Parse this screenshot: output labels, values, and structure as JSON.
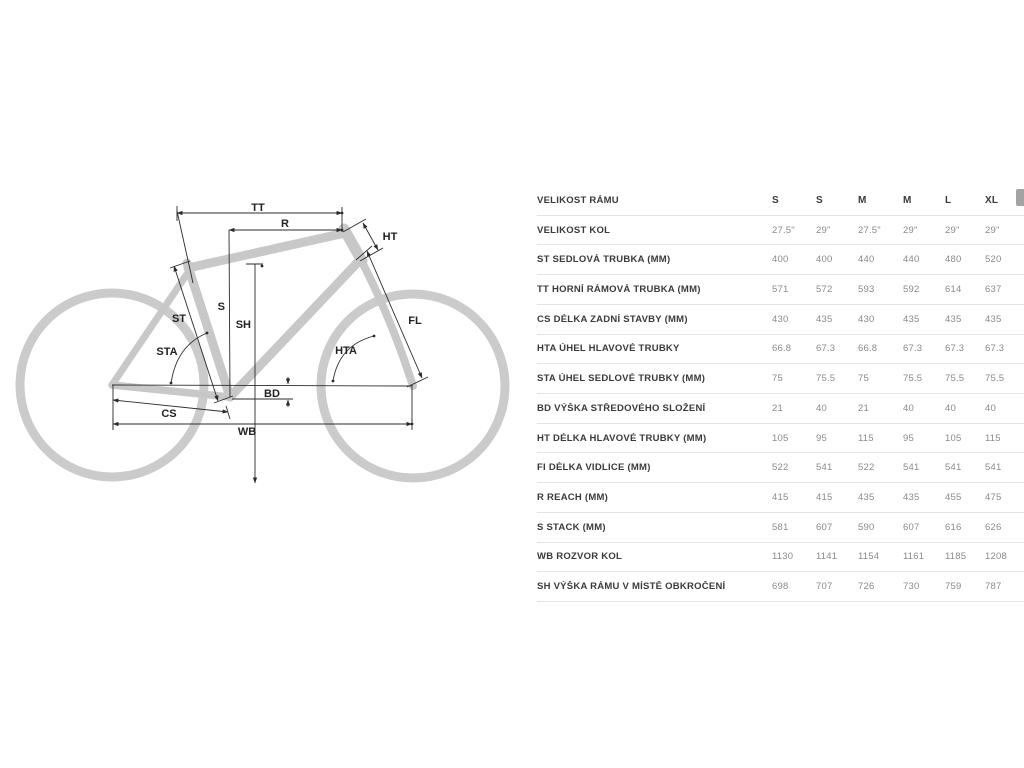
{
  "diagram": {
    "labels": {
      "tt": "TT",
      "r": "R",
      "ht": "HT",
      "st": "ST",
      "s": "S",
      "sh": "SH",
      "fl": "FL",
      "sta": "STA",
      "hta": "HTA",
      "bd": "BD",
      "cs": "CS",
      "wb": "WB"
    },
    "colors": {
      "frame_gray": "#c8c8c8",
      "wheel_gray": "#cbcbcb",
      "dimension_line": "#2b2b2b"
    }
  },
  "table": {
    "header": {
      "label": "VELIKOST RÁMU",
      "sizes": [
        "S",
        "S",
        "M",
        "M",
        "L",
        "XL"
      ]
    },
    "rows": [
      {
        "label": "VELIKOST KOL",
        "values": [
          "27.5\"",
          "29\"",
          "27.5\"",
          "29\"",
          "29\"",
          "29\""
        ]
      },
      {
        "label": "ST SEDLOVÁ TRUBKA (MM)",
        "values": [
          "400",
          "400",
          "440",
          "440",
          "480",
          "520"
        ]
      },
      {
        "label": "TT HORNÍ RÁMOVÁ TRUBKA (MM)",
        "values": [
          "571",
          "572",
          "593",
          "592",
          "614",
          "637"
        ]
      },
      {
        "label": "CS DÉLKA ZADNÍ STAVBY (MM)",
        "values": [
          "430",
          "435",
          "430",
          "435",
          "435",
          "435"
        ]
      },
      {
        "label": "HTA ÚHEL HLAVOVÉ TRUBKY",
        "values": [
          "66.8",
          "67.3",
          "66.8",
          "67.3",
          "67.3",
          "67.3"
        ]
      },
      {
        "label": "STA ÚHEL SEDLOVÉ TRUBKY (MM)",
        "values": [
          "75",
          "75.5",
          "75",
          "75.5",
          "75.5",
          "75.5"
        ]
      },
      {
        "label": "BD VÝŠKA STŘEDOVÉHO SLOŽENÍ",
        "values": [
          "21",
          "40",
          "21",
          "40",
          "40",
          "40"
        ]
      },
      {
        "label": "HT DÉLKA HLAVOVÉ TRUBKY (MM)",
        "values": [
          "105",
          "95",
          "115",
          "95",
          "105",
          "115"
        ]
      },
      {
        "label": "FI DÉLKA VIDLICE (MM)",
        "values": [
          "522",
          "541",
          "522",
          "541",
          "541",
          "541"
        ]
      },
      {
        "label": "R REACH (MM)",
        "values": [
          "415",
          "415",
          "435",
          "435",
          "455",
          "475"
        ]
      },
      {
        "label": "S STACK (MM)",
        "values": [
          "581",
          "607",
          "590",
          "607",
          "616",
          "626"
        ]
      },
      {
        "label": "WB ROZVOR KOL",
        "values": [
          "1130",
          "1141",
          "1154",
          "1161",
          "1185",
          "1208"
        ]
      },
      {
        "label": "SH VÝŠKA RÁMU V MÍSTĚ OBKROČENÍ",
        "values": [
          "698",
          "707",
          "726",
          "730",
          "759",
          "787"
        ]
      }
    ],
    "value_col_widths": [
      44,
      42,
      45,
      42,
      40,
      43
    ]
  }
}
